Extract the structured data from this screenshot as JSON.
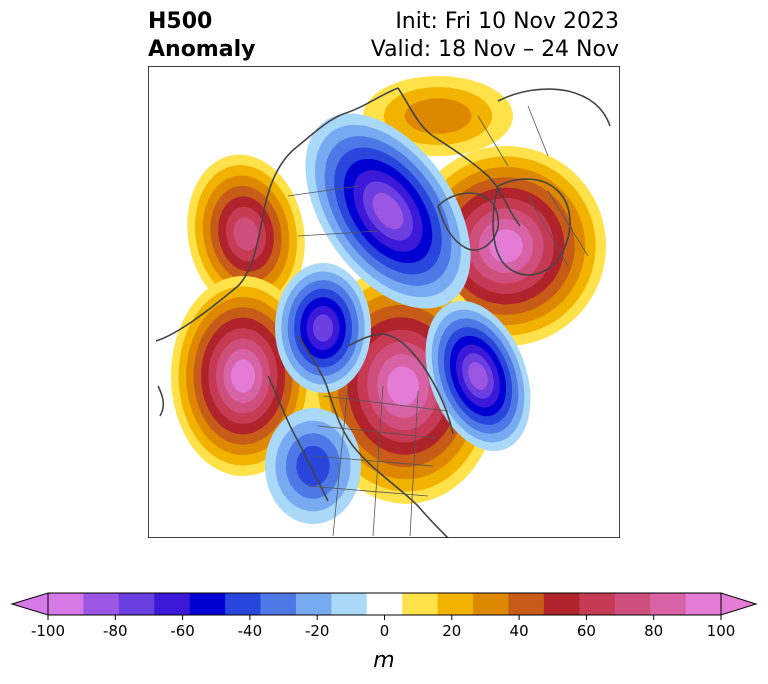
{
  "title": {
    "variable": "H500",
    "field": "Anomaly",
    "init": "Init: Fri 10 Nov 2023",
    "valid": "Valid: 18 Nov – 24 Nov"
  },
  "colorbar": {
    "label": "m",
    "ticks": [
      "-100",
      "-80",
      "-60",
      "-40",
      "-20",
      "0",
      "20",
      "40",
      "60",
      "80",
      "100"
    ],
    "levels": [
      -100,
      -90,
      -80,
      -70,
      -60,
      -50,
      -40,
      -30,
      -20,
      -10,
      10,
      20,
      30,
      40,
      50,
      60,
      70,
      80,
      90,
      100
    ],
    "colors": [
      "#d679e6",
      "#9d55e3",
      "#6a3ee0",
      "#3c19d9",
      "#0000d2",
      "#2845dc",
      "#4e78e6",
      "#77aaf0",
      "#a9d8f8",
      "#ffffff",
      "#ffe14a",
      "#f2b300",
      "#dd8800",
      "#c65c17",
      "#b0232b",
      "#c63a53",
      "#cf4f7c",
      "#d762a6",
      "#e47cd6"
    ],
    "under_color": "#d679e6",
    "over_color": "#e47cd6"
  }
}
